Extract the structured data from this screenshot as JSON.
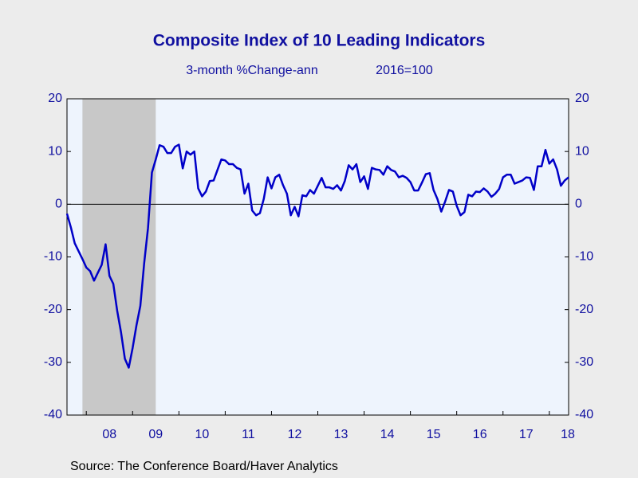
{
  "chart_data": {
    "type": "line",
    "title": "Composite Index of 10 Leading Indicators",
    "subtitle": [
      "3-month %Change-ann",
      "2016=100"
    ],
    "source": "Source:  The Conference Board/Haver Analytics",
    "x": [
      2007.583,
      2007.667,
      2007.75,
      2007.833,
      2007.917,
      2008.0,
      2008.083,
      2008.167,
      2008.25,
      2008.333,
      2008.417,
      2008.5,
      2008.583,
      2008.667,
      2008.75,
      2008.833,
      2008.917,
      2009.0,
      2009.083,
      2009.167,
      2009.25,
      2009.333,
      2009.417,
      2009.5,
      2009.583,
      2009.667,
      2009.75,
      2009.833,
      2009.917,
      2010.0,
      2010.083,
      2010.167,
      2010.25,
      2010.333,
      2010.417,
      2010.5,
      2010.583,
      2010.667,
      2010.75,
      2010.833,
      2010.917,
      2011.0,
      2011.083,
      2011.167,
      2011.25,
      2011.333,
      2011.417,
      2011.5,
      2011.583,
      2011.667,
      2011.75,
      2011.833,
      2011.917,
      2012.0,
      2012.083,
      2012.167,
      2012.25,
      2012.333,
      2012.417,
      2012.5,
      2012.583,
      2012.667,
      2012.75,
      2012.833,
      2012.917,
      2013.0,
      2013.083,
      2013.167,
      2013.25,
      2013.333,
      2013.417,
      2013.5,
      2013.583,
      2013.667,
      2013.75,
      2013.833,
      2013.917,
      2014.0,
      2014.083,
      2014.167,
      2014.25,
      2014.333,
      2014.417,
      2014.5,
      2014.583,
      2014.667,
      2014.75,
      2014.833,
      2014.917,
      2015.0,
      2015.083,
      2015.167,
      2015.25,
      2015.333,
      2015.417,
      2015.5,
      2015.583,
      2015.667,
      2015.75,
      2015.833,
      2015.917,
      2016.0,
      2016.083,
      2016.167,
      2016.25,
      2016.333,
      2016.417,
      2016.5,
      2016.583,
      2016.667,
      2016.75,
      2016.833,
      2016.917,
      2017.0,
      2017.083,
      2017.167,
      2017.25,
      2017.333,
      2017.417,
      2017.5,
      2017.583,
      2017.667,
      2017.75,
      2017.833,
      2017.917,
      2018.0,
      2018.083,
      2018.167,
      2018.25,
      2018.333,
      2018.417
    ],
    "series": [
      {
        "name": "Composite Index of 10 Leading Indicators",
        "color": "#0000c8",
        "values": [
          -1.8,
          -4.4,
          -7.4,
          -8.9,
          -10.4,
          -12,
          -12.7,
          -14.5,
          -13,
          -11.5,
          -7.6,
          -13.6,
          -15.1,
          -20.2,
          -24.3,
          -29.3,
          -31,
          -27.3,
          -23,
          -19.3,
          -11.2,
          -4.5,
          6,
          8.5,
          11.2,
          10.9,
          9.7,
          9.7,
          10.9,
          11.3,
          6.8,
          10,
          9.4,
          10,
          3,
          1.5,
          2.4,
          4.4,
          4.5,
          6.5,
          8.5,
          8.3,
          7.6,
          7.6,
          6.9,
          6.6,
          2,
          3.9,
          -1.2,
          -2.1,
          -1.7,
          1,
          5.1,
          3,
          5.1,
          5.6,
          3.6,
          2,
          -2.1,
          -0.5,
          -2.3,
          1.7,
          1.5,
          2.7,
          2,
          3.5,
          5,
          3.2,
          3.2,
          2.9,
          3.6,
          2.6,
          4.4,
          7.4,
          6.6,
          7.6,
          4.2,
          5.3,
          2.9,
          6.9,
          6.6,
          6.5,
          5.6,
          7.2,
          6.5,
          6.2,
          5.1,
          5.4,
          5,
          4.2,
          2.6,
          2.6,
          4.1,
          5.7,
          5.9,
          2.7,
          1,
          -1.4,
          0.5,
          2.7,
          2.4,
          -0.3,
          -2.1,
          -1.5,
          1.8,
          1.5,
          2.4,
          2.3,
          3,
          2.4,
          1.4,
          2,
          2.9,
          5.1,
          5.6,
          5.6,
          3.9,
          4.2,
          4.5,
          5.1,
          5,
          2.7,
          7.2,
          7.2,
          10.3,
          7.7,
          8.5,
          6.6,
          3.5,
          4.5,
          5.1
        ]
      }
    ],
    "xlim": [
      2007.583,
      2018.417
    ],
    "xticks": [
      2008,
      2009,
      2010,
      2011,
      2012,
      2013,
      2014,
      2015,
      2016,
      2017,
      2018
    ],
    "xtick_labels": [
      {
        "value": 2008.5,
        "label": "08"
      },
      {
        "value": 2009.5,
        "label": "09"
      },
      {
        "value": 2010.5,
        "label": "10"
      },
      {
        "value": 2011.5,
        "label": "11"
      },
      {
        "value": 2012.5,
        "label": "12"
      },
      {
        "value": 2013.5,
        "label": "13"
      },
      {
        "value": 2014.5,
        "label": "14"
      },
      {
        "value": 2015.5,
        "label": "15"
      },
      {
        "value": 2016.5,
        "label": "16"
      },
      {
        "value": 2017.5,
        "label": "17"
      },
      {
        "value": 2018.4,
        "label": "18"
      }
    ],
    "ylim": [
      -40,
      20
    ],
    "yticks": [
      -40,
      -30,
      -20,
      -10,
      0,
      10,
      20
    ],
    "y2lim": [
      -40,
      20
    ],
    "y2ticks": [
      -40,
      -30,
      -20,
      -10,
      0,
      10,
      20
    ],
    "shading": [
      [
        2007.917,
        2009.5
      ]
    ],
    "zero_line": true
  }
}
